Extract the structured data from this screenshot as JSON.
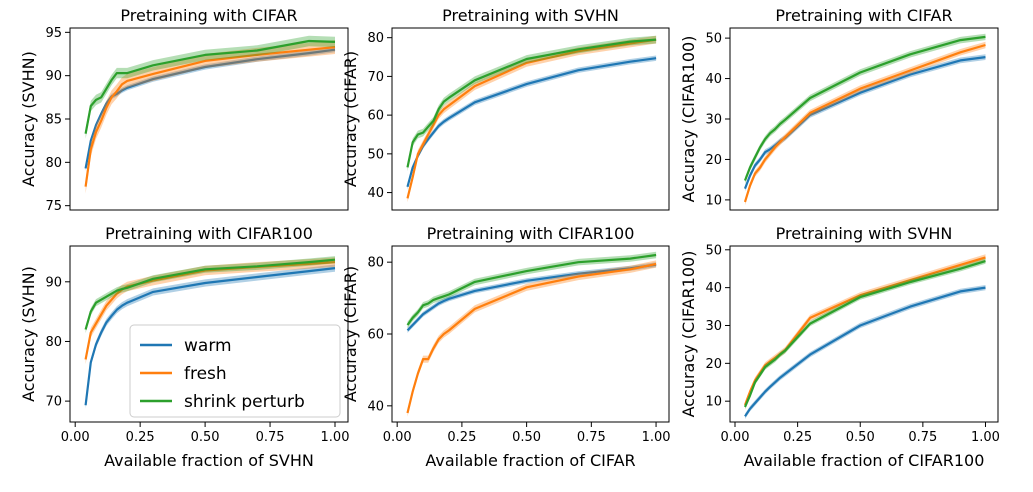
{
  "colors": {
    "warm": "#1f77b4",
    "fresh": "#ff7f0e",
    "shrink perturb": "#2ca02c"
  },
  "legend": {
    "entries": [
      "warm",
      "fresh",
      "shrink perturb"
    ],
    "placement": "lower-right of bottom-left panel"
  },
  "chart_data": [
    {
      "type": "line",
      "title": "Pretraining with CIFAR",
      "xlabel": "",
      "ylabel": "Accuracy (SVHN)",
      "xlim": [
        -0.02,
        1.05
      ],
      "ylim": [
        74.5,
        95.5
      ],
      "yticks": [
        75,
        80,
        85,
        90,
        95
      ],
      "xticks": [],
      "x": [
        0.04,
        0.06,
        0.08,
        0.1,
        0.12,
        0.14,
        0.16,
        0.18,
        0.2,
        0.3,
        0.5,
        0.7,
        0.9,
        1.0
      ],
      "series": [
        {
          "name": "warm",
          "values": [
            79.3,
            82.5,
            84.3,
            85.6,
            86.8,
            87.6,
            87.9,
            88.3,
            88.6,
            89.6,
            91.0,
            91.9,
            92.6,
            93.0
          ],
          "band": 0.3
        },
        {
          "name": "fresh",
          "values": [
            77.2,
            81.5,
            83.5,
            84.8,
            86.3,
            87.5,
            88.2,
            89.0,
            89.4,
            90.2,
            91.7,
            92.4,
            93.0,
            93.3
          ],
          "band": 0.8
        },
        {
          "name": "shrink perturb",
          "values": [
            83.3,
            86.5,
            87.2,
            87.5,
            88.5,
            89.5,
            90.3,
            90.3,
            90.3,
            91.2,
            92.4,
            92.9,
            94.0,
            93.9
          ],
          "band": 0.6
        }
      ]
    },
    {
      "type": "line",
      "title": "Pretraining with SVHN",
      "xlabel": "",
      "ylabel": "Accuracy (CIFAR)",
      "xlim": [
        -0.02,
        1.05
      ],
      "ylim": [
        35.5,
        82.5
      ],
      "yticks": [
        40,
        50,
        60,
        70,
        80
      ],
      "xticks": [],
      "x": [
        0.04,
        0.06,
        0.08,
        0.1,
        0.12,
        0.14,
        0.16,
        0.18,
        0.2,
        0.3,
        0.5,
        0.7,
        0.9,
        1.0
      ],
      "series": [
        {
          "name": "warm",
          "values": [
            41.5,
            46.5,
            49.5,
            52.0,
            53.8,
            55.5,
            57.2,
            58.3,
            59.2,
            63.3,
            68.0,
            71.6,
            73.8,
            74.7
          ],
          "band": 0.7
        },
        {
          "name": "fresh",
          "values": [
            38.5,
            44.0,
            50.0,
            52.5,
            55.0,
            57.5,
            60.0,
            61.5,
            62.5,
            67.5,
            73.5,
            76.5,
            78.5,
            79.5
          ],
          "band": 1.0
        },
        {
          "name": "shrink perturb",
          "values": [
            46.5,
            53.0,
            55.0,
            55.5,
            57.0,
            58.5,
            61.5,
            63.5,
            64.5,
            69.0,
            74.5,
            77.0,
            79.0,
            79.5
          ],
          "band": 1.0
        }
      ]
    },
    {
      "type": "line",
      "title": "Pretraining with CIFAR",
      "xlabel": "",
      "ylabel": "Accuracy (CIFAR100)",
      "xlim": [
        -0.02,
        1.05
      ],
      "ylim": [
        7.5,
        52.5
      ],
      "yticks": [
        10,
        20,
        30,
        40,
        50
      ],
      "xticks": [],
      "x": [
        0.04,
        0.06,
        0.08,
        0.1,
        0.12,
        0.14,
        0.16,
        0.18,
        0.2,
        0.3,
        0.5,
        0.7,
        0.9,
        1.0
      ],
      "series": [
        {
          "name": "warm",
          "values": [
            12.8,
            16.0,
            18.5,
            20.0,
            21.8,
            22.5,
            23.5,
            24.5,
            25.3,
            31.0,
            36.5,
            41.0,
            44.5,
            45.3
          ],
          "band": 0.7
        },
        {
          "name": "fresh",
          "values": [
            9.5,
            13.5,
            16.5,
            18.0,
            20.0,
            21.5,
            23.0,
            24.3,
            25.5,
            31.5,
            37.5,
            42.0,
            46.5,
            48.3
          ],
          "band": 0.8
        },
        {
          "name": "shrink perturb",
          "values": [
            14.8,
            18.0,
            20.5,
            23.0,
            25.0,
            26.5,
            27.5,
            28.8,
            29.8,
            35.2,
            41.5,
            46.0,
            49.5,
            50.3
          ],
          "band": 0.8
        }
      ]
    },
    {
      "type": "line",
      "title": "Pretraining with CIFAR100",
      "xlabel": "Available fraction of SVHN",
      "ylabel": "Accuracy (SVHN)",
      "xlim": [
        -0.02,
        1.05
      ],
      "ylim": [
        66.5,
        96.0
      ],
      "yticks": [
        70,
        80,
        90
      ],
      "xticks": [
        0.0,
        0.25,
        0.5,
        0.75,
        1.0
      ],
      "xticklabels": [
        "0.00",
        "0.25",
        "0.50",
        "0.75",
        "1.00"
      ],
      "x": [
        0.04,
        0.06,
        0.08,
        0.1,
        0.12,
        0.14,
        0.16,
        0.18,
        0.2,
        0.3,
        0.5,
        0.7,
        0.9,
        1.0
      ],
      "series": [
        {
          "name": "warm",
          "values": [
            69.3,
            76.5,
            79.5,
            81.5,
            83.2,
            84.3,
            85.3,
            86.0,
            86.5,
            88.3,
            89.8,
            90.8,
            91.8,
            92.3
          ],
          "band": 0.6
        },
        {
          "name": "fresh",
          "values": [
            77.0,
            81.5,
            83.0,
            84.5,
            86.0,
            87.0,
            88.0,
            88.7,
            89.2,
            90.2,
            91.9,
            92.5,
            93.0,
            93.3
          ],
          "band": 0.8
        },
        {
          "name": "shrink perturb",
          "values": [
            82.0,
            85.0,
            86.5,
            87.0,
            87.5,
            88.0,
            88.5,
            88.8,
            89.0,
            90.5,
            92.1,
            92.6,
            93.3,
            93.7
          ],
          "band": 0.6
        }
      ]
    },
    {
      "type": "line",
      "title": "Pretraining with CIFAR100",
      "xlabel": "Available fraction of CIFAR",
      "ylabel": "Accuracy (CIFAR)",
      "xlim": [
        -0.02,
        1.05
      ],
      "ylim": [
        35.5,
        84.5
      ],
      "yticks": [
        40,
        60,
        80
      ],
      "xticks": [
        0.0,
        0.25,
        0.5,
        0.75,
        1.0
      ],
      "xticklabels": [
        "0.00",
        "0.25",
        "0.50",
        "0.75",
        "1.00"
      ],
      "x": [
        0.04,
        0.06,
        0.08,
        0.1,
        0.12,
        0.14,
        0.16,
        0.18,
        0.2,
        0.3,
        0.5,
        0.7,
        0.9,
        1.0
      ],
      "series": [
        {
          "name": "warm",
          "values": [
            61.0,
            62.5,
            64.0,
            65.5,
            66.5,
            67.5,
            68.5,
            69.2,
            69.8,
            72.0,
            74.8,
            76.8,
            78.3,
            79.3
          ],
          "band": 0.7
        },
        {
          "name": "fresh",
          "values": [
            38.0,
            44.0,
            49.0,
            53.0,
            53.0,
            56.0,
            58.5,
            60.0,
            61.0,
            67.0,
            73.0,
            76.0,
            78.0,
            79.5
          ],
          "band": 1.0
        },
        {
          "name": "shrink perturb",
          "values": [
            62.5,
            64.5,
            66.0,
            68.0,
            68.5,
            69.5,
            70.0,
            70.5,
            71.0,
            74.5,
            77.5,
            80.0,
            81.0,
            82.0
          ],
          "band": 0.9
        }
      ]
    },
    {
      "type": "line",
      "title": "Pretraining with SVHN",
      "xlabel": "Available fraction of CIFAR100",
      "ylabel": "Accuracy (CIFAR100)",
      "xlim": [
        -0.02,
        1.05
      ],
      "ylim": [
        4.5,
        51.0
      ],
      "yticks": [
        10,
        20,
        30,
        40,
        50
      ],
      "xticks": [
        0.0,
        0.25,
        0.5,
        0.75,
        1.0
      ],
      "xticklabels": [
        "0.00",
        "0.25",
        "0.50",
        "0.75",
        "1.00"
      ],
      "x": [
        0.04,
        0.06,
        0.08,
        0.1,
        0.12,
        0.14,
        0.16,
        0.18,
        0.2,
        0.3,
        0.5,
        0.7,
        0.9,
        1.0
      ],
      "series": [
        {
          "name": "warm",
          "values": [
            6.0,
            8.0,
            9.5,
            11.0,
            12.5,
            13.8,
            15.0,
            16.2,
            17.2,
            22.3,
            30.0,
            35.0,
            39.0,
            40.0
          ],
          "band": 0.7
        },
        {
          "name": "fresh",
          "values": [
            9.0,
            12.5,
            15.5,
            17.5,
            19.5,
            20.5,
            21.5,
            22.5,
            23.5,
            32.0,
            38.0,
            42.0,
            46.0,
            48.0
          ],
          "band": 0.8
        },
        {
          "name": "shrink perturb",
          "values": [
            8.5,
            11.5,
            15.0,
            17.0,
            19.0,
            20.0,
            21.0,
            22.3,
            23.3,
            30.5,
            37.5,
            41.5,
            45.0,
            47.0
          ],
          "band": 0.7
        }
      ]
    }
  ]
}
